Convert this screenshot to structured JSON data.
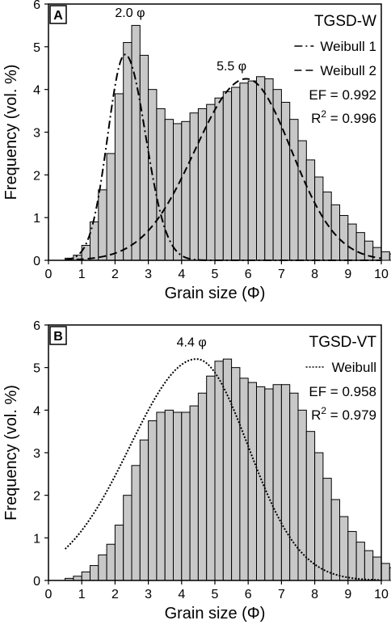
{
  "chart_data": [
    {
      "type": "bar",
      "panel_label": "A",
      "series_title": "TGSD-W",
      "xlabel": "Grain size (Φ)",
      "ylabel": "Frequency (vol. %)",
      "xlim": [
        0,
        10
      ],
      "ylim": [
        0,
        6
      ],
      "xticks": [
        "0",
        "1",
        "2",
        "3",
        "4",
        "5",
        "6",
        "7",
        "8",
        "9",
        "10"
      ],
      "yticks": [
        "0",
        "1",
        "2",
        "3",
        "4",
        "5",
        "6"
      ],
      "bin_width": 0.25,
      "bin_start": 0.5,
      "values": [
        0.05,
        0.12,
        0.35,
        0.9,
        1.65,
        2.5,
        3.9,
        5.1,
        5.5,
        4.8,
        4.0,
        3.55,
        3.3,
        3.2,
        3.25,
        3.45,
        3.55,
        3.65,
        3.8,
        3.95,
        4.05,
        4.15,
        4.2,
        4.3,
        4.25,
        4.0,
        3.7,
        3.3,
        2.8,
        2.35,
        1.95,
        1.6,
        1.3,
        1.05,
        0.85,
        0.65,
        0.45,
        0.3,
        0.2,
        0.15,
        0.1,
        0.05,
        0.03,
        0.02
      ],
      "legend": [
        {
          "name": "Weibull 1",
          "style": "dashdot"
        },
        {
          "name": "Weibull 2",
          "style": "dashed"
        }
      ],
      "stats": [
        "EF = 0.992"
      ],
      "r2": {
        "label": "R",
        "sup": "2",
        "value": " = 0.996"
      },
      "annotations": [
        {
          "text": "2.0 φ",
          "x": 2.45,
          "y": 5.7
        },
        {
          "text": "5.5 φ",
          "x": 5.5,
          "y": 4.45
        }
      ],
      "fits": [
        {
          "name": "Weibull 1",
          "style": "dashdot",
          "amp": 4.82,
          "mu": 2.3,
          "sl": 0.52,
          "sr": 0.62
        },
        {
          "name": "Weibull 2",
          "style": "dashed",
          "amp": 4.25,
          "mu": 5.95,
          "sl": 1.55,
          "sr": 1.35
        }
      ]
    },
    {
      "type": "bar",
      "panel_label": "B",
      "series_title": "TGSD-VT",
      "xlabel": "Grain size (Φ)",
      "ylabel": "Frequency (vol. %)",
      "xlim": [
        0,
        10
      ],
      "ylim": [
        0,
        6
      ],
      "xticks": [
        "0",
        "1",
        "2",
        "3",
        "4",
        "5",
        "6",
        "7",
        "8",
        "9",
        "10"
      ],
      "yticks": [
        "0",
        "1",
        "2",
        "3",
        "4",
        "5",
        "6"
      ],
      "bin_width": 0.25,
      "bin_start": 0.5,
      "values": [
        0.05,
        0.1,
        0.2,
        0.35,
        0.6,
        0.85,
        1.3,
        2.0,
        2.7,
        3.3,
        3.75,
        3.95,
        4.0,
        3.95,
        3.95,
        4.1,
        4.4,
        4.8,
        5.15,
        5.2,
        5.0,
        4.75,
        4.65,
        4.55,
        4.5,
        4.6,
        4.6,
        4.4,
        4.0,
        3.5,
        3.0,
        2.4,
        1.9,
        1.5,
        1.15,
        0.9,
        0.7,
        0.55,
        0.4,
        0.3,
        0.2,
        0.15,
        0.1,
        0.05,
        0.03
      ],
      "legend": [
        {
          "name": "Weibull",
          "style": "dotted"
        }
      ],
      "stats": [
        "EF = 0.958"
      ],
      "r2": {
        "label": "R",
        "sup": "2",
        "value": " = 0.979"
      },
      "annotations": [
        {
          "text": "4.4 φ",
          "x": 4.3,
          "y": 5.5
        }
      ],
      "fits": [
        {
          "name": "Weibull",
          "style": "dotted",
          "amp": 5.2,
          "mu": 4.45,
          "sl": 2.0,
          "sr": 1.55
        }
      ]
    }
  ]
}
